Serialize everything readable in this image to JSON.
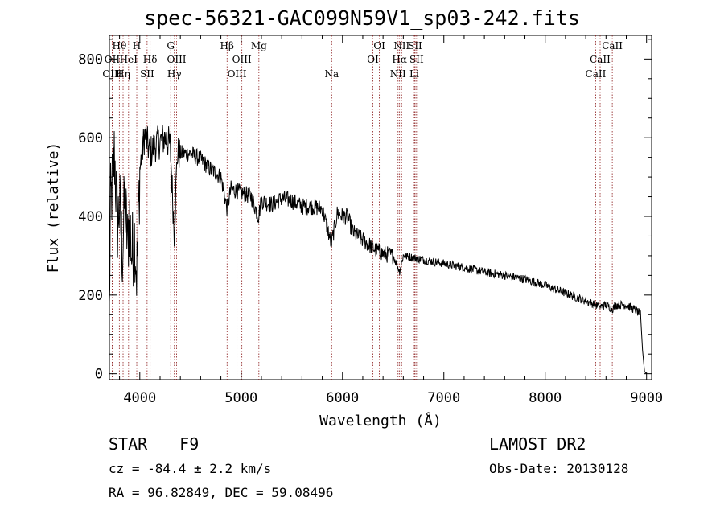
{
  "title": "spec-56321-GAC099N59V1_sp03-242.fits",
  "object_class": "STAR",
  "subclass": "F9",
  "survey": "LAMOST DR2",
  "redshift_text": "cz = -84.4 ± 2.2 km/s",
  "obs_date_text": "Obs-Date: 20130128",
  "coords_text": "RA =  96.82849, DEC =  59.08496",
  "chart_data": {
    "type": "line",
    "xlabel": "Wavelength (Å)",
    "ylabel": "Flux (relative)",
    "xlim": [
      3700,
      9050
    ],
    "ylim": [
      -15,
      860
    ],
    "xticks": [
      4000,
      5000,
      6000,
      7000,
      8000,
      9000
    ],
    "yticks": [
      0,
      200,
      400,
      600,
      800
    ],
    "line_color": "#000000",
    "marker_color": "#8b1a1a",
    "spectrum_anchors": [
      [
        3700,
        150
      ],
      [
        3710,
        420
      ],
      [
        3730,
        480
      ],
      [
        3750,
        560
      ],
      [
        3780,
        380
      ],
      [
        3800,
        430
      ],
      [
        3830,
        300
      ],
      [
        3850,
        440
      ],
      [
        3880,
        330
      ],
      [
        3900,
        400
      ],
      [
        3920,
        300
      ],
      [
        3950,
        350
      ],
      [
        3970,
        250
      ],
      [
        4000,
        520
      ],
      [
        4050,
        610
      ],
      [
        4100,
        560
      ],
      [
        4150,
        580
      ],
      [
        4200,
        590
      ],
      [
        4250,
        600
      ],
      [
        4300,
        580
      ],
      [
        4340,
        360
      ],
      [
        4370,
        560
      ],
      [
        4400,
        560
      ],
      [
        4500,
        560
      ],
      [
        4600,
        545
      ],
      [
        4700,
        520
      ],
      [
        4800,
        500
      ],
      [
        4861,
        420
      ],
      [
        4900,
        470
      ],
      [
        5000,
        460
      ],
      [
        5100,
        450
      ],
      [
        5170,
        400
      ],
      [
        5200,
        440
      ],
      [
        5300,
        430
      ],
      [
        5400,
        445
      ],
      [
        5500,
        440
      ],
      [
        5600,
        425
      ],
      [
        5700,
        425
      ],
      [
        5800,
        420
      ],
      [
        5890,
        330
      ],
      [
        5950,
        410
      ],
      [
        6000,
        400
      ],
      [
        6050,
        400
      ],
      [
        6100,
        360
      ],
      [
        6200,
        340
      ],
      [
        6300,
        320
      ],
      [
        6400,
        305
      ],
      [
        6500,
        300
      ],
      [
        6563,
        260
      ],
      [
        6600,
        300
      ],
      [
        6700,
        295
      ],
      [
        6800,
        290
      ],
      [
        6900,
        285
      ],
      [
        7000,
        280
      ],
      [
        7200,
        270
      ],
      [
        7400,
        258
      ],
      [
        7600,
        250
      ],
      [
        7800,
        240
      ],
      [
        8000,
        225
      ],
      [
        8200,
        205
      ],
      [
        8400,
        185
      ],
      [
        8498,
        175
      ],
      [
        8542,
        170
      ],
      [
        8600,
        175
      ],
      [
        8662,
        165
      ],
      [
        8700,
        175
      ],
      [
        8800,
        175
      ],
      [
        8900,
        160
      ],
      [
        8940,
        150
      ],
      [
        8960,
        60
      ],
      [
        8980,
        5
      ],
      [
        9000,
        0
      ],
      [
        9050,
        0
      ]
    ],
    "noise_regions": [
      {
        "from": 3700,
        "to": 4000,
        "amplitude": 110
      },
      {
        "from": 4000,
        "to": 4400,
        "amplitude": 45
      },
      {
        "from": 4400,
        "to": 6500,
        "amplitude": 22
      },
      {
        "from": 6500,
        "to": 8950,
        "amplitude": 11
      }
    ],
    "lines": [
      {
        "label": "Hθ",
        "wave": 3798,
        "row": 1
      },
      {
        "label": "OII",
        "wave": 3727,
        "row": 2
      },
      {
        "label": "OIII",
        "wave": 3727,
        "row": 3
      },
      {
        "label": "H",
        "wave": 3970,
        "row": 1
      },
      {
        "label": "HeI",
        "wave": 3889,
        "row": 2
      },
      {
        "label": "Hη",
        "wave": 3835,
        "row": 3
      },
      {
        "label": "Hδ",
        "wave": 4102,
        "row": 2
      },
      {
        "label": "SII",
        "wave": 4072,
        "row": 3
      },
      {
        "label": "G",
        "wave": 4305,
        "row": 1
      },
      {
        "label": "OIII",
        "wave": 4363,
        "row": 2
      },
      {
        "label": "Hγ",
        "wave": 4341,
        "row": 3
      },
      {
        "label": "Hβ",
        "wave": 4861,
        "row": 1
      },
      {
        "label": "OIII",
        "wave": 5007,
        "row": 2
      },
      {
        "label": "OIII",
        "wave": 4959,
        "row": 3
      },
      {
        "label": "Mg",
        "wave": 5175,
        "row": 1
      },
      {
        "label": "Na",
        "wave": 5893,
        "row": 3
      },
      {
        "label": "OI",
        "wave": 6364,
        "row": 1
      },
      {
        "label": "OI",
        "wave": 6300,
        "row": 2
      },
      {
        "label": "NII",
        "wave": 6583,
        "row": 1
      },
      {
        "label": "SII",
        "wave": 6716,
        "row": 1
      },
      {
        "label": "Hα",
        "wave": 6563,
        "row": 2
      },
      {
        "label": "SII",
        "wave": 6731,
        "row": 2
      },
      {
        "label": "NII",
        "wave": 6548,
        "row": 3
      },
      {
        "label": "Li",
        "wave": 6708,
        "row": 3
      },
      {
        "label": "CaII",
        "wave": 8662,
        "row": 1
      },
      {
        "label": "CaII",
        "wave": 8542,
        "row": 2
      },
      {
        "label": "CaII",
        "wave": 8498,
        "row": 3
      }
    ]
  }
}
